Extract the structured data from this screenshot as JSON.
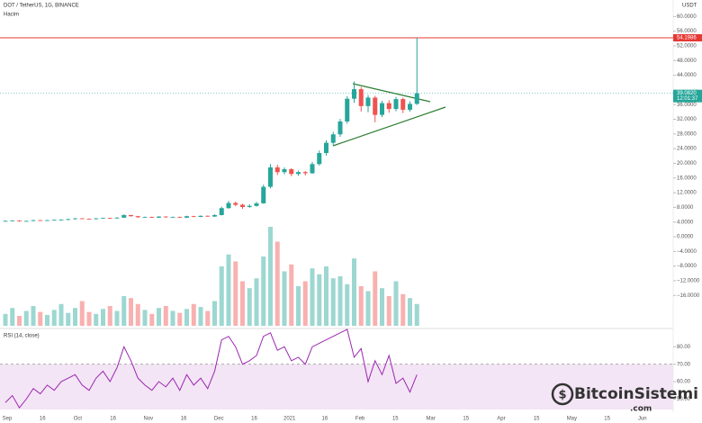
{
  "header": {
    "symbol": "DOT / TetherUS, 1G, BINANCE",
    "volume_label": "Hacim",
    "currency": "USDT"
  },
  "chart_data": [
    {
      "type": "candlestick",
      "up_color": "#26a69a",
      "down_color": "#ef5350",
      "ylim": [
        -25,
        64.5
      ],
      "yticks": [
        {
          "value": 60,
          "label": "60.0000"
        },
        {
          "value": 56,
          "label": "56.0000"
        },
        {
          "value": 52,
          "label": "52.0000"
        },
        {
          "value": 48,
          "label": "48.0000"
        },
        {
          "value": 44,
          "label": "44.0000"
        },
        {
          "value": 36,
          "label": "36.0000"
        },
        {
          "value": 32,
          "label": "32.0000"
        },
        {
          "value": 28,
          "label": "28.0000"
        },
        {
          "value": 24,
          "label": "24.0000"
        },
        {
          "value": 20,
          "label": "20.0000"
        },
        {
          "value": 16,
          "label": "16.0000"
        },
        {
          "value": 12,
          "label": "12.0000"
        },
        {
          "value": 8,
          "label": "8.0000"
        },
        {
          "value": 4,
          "label": "4.0000"
        },
        {
          "value": 0,
          "label": "0.0000"
        },
        {
          "value": -4,
          "label": "−4.0000"
        },
        {
          "value": -8,
          "label": "−8.0000"
        },
        {
          "value": -12,
          "label": "−12.0000"
        },
        {
          "value": -16,
          "label": "−16.0000"
        }
      ],
      "levels": [
        {
          "value": 54.1986,
          "label": "54.1986",
          "color": "#e53935"
        }
      ],
      "last_price": {
        "value": 39.082,
        "label": "39.0820"
      },
      "countdown": "12:01:37",
      "ohlc": [
        [
          4.2,
          4.5,
          4.1,
          4.3
        ],
        [
          4.3,
          4.5,
          4.2,
          4.4
        ],
        [
          4.4,
          4.5,
          4.1,
          4.2
        ],
        [
          4.2,
          4.4,
          4.1,
          4.3
        ],
        [
          4.3,
          4.6,
          4.2,
          4.5
        ],
        [
          4.5,
          4.6,
          4.3,
          4.4
        ],
        [
          4.4,
          4.6,
          4.3,
          4.5
        ],
        [
          4.5,
          4.7,
          4.4,
          4.6
        ],
        [
          4.6,
          4.8,
          4.5,
          4.6
        ],
        [
          4.6,
          4.9,
          4.5,
          4.8
        ],
        [
          4.8,
          5.1,
          4.7,
          5.0
        ],
        [
          5.0,
          5.1,
          4.8,
          4.9
        ],
        [
          4.9,
          5.0,
          4.7,
          4.8
        ],
        [
          4.8,
          5.1,
          4.7,
          5.0
        ],
        [
          5.0,
          5.2,
          4.9,
          5.1
        ],
        [
          5.1,
          5.2,
          4.9,
          5.0
        ],
        [
          5.0,
          5.3,
          4.9,
          5.2
        ],
        [
          5.2,
          6.1,
          5.1,
          5.9
        ],
        [
          5.9,
          6.0,
          5.5,
          5.6
        ],
        [
          5.6,
          5.7,
          5.2,
          5.3
        ],
        [
          5.3,
          5.5,
          5.2,
          5.4
        ],
        [
          5.4,
          5.5,
          5.1,
          5.2
        ],
        [
          5.2,
          5.6,
          5.1,
          5.5
        ],
        [
          5.5,
          5.6,
          5.2,
          5.3
        ],
        [
          5.3,
          5.5,
          5.2,
          5.4
        ],
        [
          5.4,
          5.5,
          5.1,
          5.2
        ],
        [
          5.2,
          5.7,
          5.1,
          5.6
        ],
        [
          5.6,
          5.7,
          5.3,
          5.4
        ],
        [
          5.4,
          5.8,
          5.3,
          5.7
        ],
        [
          5.7,
          5.8,
          5.4,
          5.5
        ],
        [
          5.5,
          6.1,
          5.4,
          5.9
        ],
        [
          5.9,
          8.2,
          5.8,
          7.8
        ],
        [
          7.8,
          9.8,
          7.6,
          9.2
        ],
        [
          9.2,
          9.6,
          8.3,
          8.7
        ],
        [
          8.7,
          9.0,
          7.6,
          8.1
        ],
        [
          8.1,
          8.9,
          7.9,
          8.4
        ],
        [
          8.4,
          9.5,
          8.2,
          9.1
        ],
        [
          9.1,
          14.2,
          9.0,
          13.6
        ],
        [
          13.6,
          19.8,
          13.2,
          18.9
        ],
        [
          18.9,
          19.6,
          16.8,
          17.6
        ],
        [
          17.6,
          18.9,
          17.0,
          18.4
        ],
        [
          18.4,
          18.7,
          16.5,
          17.1
        ],
        [
          17.1,
          18.0,
          16.6,
          17.6
        ],
        [
          17.6,
          17.9,
          16.7,
          17.3
        ],
        [
          17.3,
          20.4,
          17.1,
          19.8
        ],
        [
          19.8,
          23.5,
          19.4,
          22.8
        ],
        [
          22.8,
          26.3,
          22.1,
          25.6
        ],
        [
          25.6,
          28.6,
          24.9,
          27.9
        ],
        [
          27.9,
          32.1,
          27.2,
          31.4
        ],
        [
          31.4,
          38.3,
          30.8,
          37.6
        ],
        [
          37.6,
          42.3,
          36.5,
          40.2
        ],
        [
          40.2,
          40.8,
          34.1,
          35.6
        ],
        [
          35.6,
          38.6,
          33.9,
          37.9
        ],
        [
          37.9,
          38.4,
          31.2,
          33.2
        ],
        [
          33.2,
          37.0,
          32.6,
          36.4
        ],
        [
          36.4,
          37.2,
          33.8,
          34.8
        ],
        [
          34.8,
          38.1,
          34.2,
          37.5
        ],
        [
          37.5,
          37.9,
          33.7,
          34.6
        ],
        [
          34.6,
          36.9,
          34.1,
          36.2
        ],
        [
          36.2,
          54.2,
          35.9,
          39.082
        ]
      ]
    },
    {
      "type": "volume",
      "ylim": [
        0,
        100
      ],
      "values": [
        12,
        18,
        10,
        15,
        20,
        14,
        11,
        16,
        22,
        13,
        18,
        25,
        14,
        12,
        17,
        20,
        15,
        30,
        28,
        22,
        16,
        12,
        18,
        20,
        15,
        13,
        17,
        22,
        19,
        15,
        25,
        60,
        72,
        65,
        45,
        38,
        48,
        70,
        100,
        85,
        55,
        62,
        40,
        45,
        58,
        52,
        60,
        48,
        50,
        42,
        68,
        40,
        35,
        55,
        38,
        30,
        45,
        32,
        28,
        22
      ]
    },
    {
      "type": "rsi",
      "title": "RSI (14, close)",
      "color": "#9c27b0",
      "band_color": "#f3e5f5",
      "overbought": 70,
      "ylim": [
        44,
        90.5
      ],
      "yticks": [
        {
          "value": 80,
          "label": "80.00"
        },
        {
          "value": 70,
          "label": "70.00"
        },
        {
          "value": 60,
          "label": "60.00"
        },
        {
          "value": 50,
          "label": "50.00"
        }
      ],
      "values": [
        48,
        52,
        45,
        50,
        56,
        53,
        58,
        55,
        60,
        62,
        64,
        58,
        55,
        62,
        66,
        60,
        68,
        80,
        72,
        62,
        58,
        55,
        60,
        57,
        62,
        55,
        64,
        58,
        62,
        56,
        66,
        84,
        86,
        80,
        70,
        72,
        75,
        86,
        88,
        78,
        80,
        72,
        74,
        70,
        80,
        82,
        84,
        86,
        88,
        90,
        74,
        79,
        60,
        72,
        64,
        75,
        59,
        62,
        54,
        64
      ]
    }
  ],
  "x_labels": [
    "Sep",
    "16",
    "Oct",
    "16",
    "Nov",
    "16",
    "Dec",
    "16",
    "2021",
    "16",
    "Feb",
    "15",
    "Mar",
    "15",
    "Apr",
    "15",
    "May",
    "15",
    "Jun"
  ],
  "watermark": {
    "brand": "BitcoinSistemi",
    "domain": ".com"
  }
}
